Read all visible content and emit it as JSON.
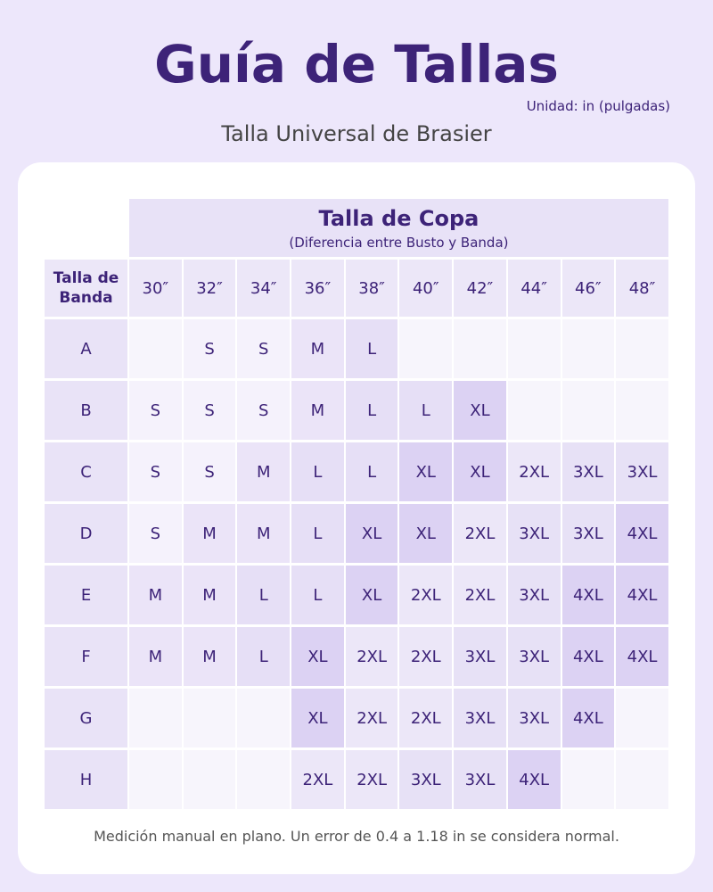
{
  "header": {
    "title": "Guía de Tallas",
    "unit": "Unidad: in (pulgadas)",
    "subtitle": "Talla Universal de Brasier"
  },
  "table": {
    "group_title": "Talla de Copa",
    "group_subtitle": "(Diferencia entre Busto y Banda)",
    "band_header": "Talla de Banda",
    "columns": [
      "30″",
      "32″",
      "34″",
      "36″",
      "38″",
      "40″",
      "42″",
      "44″",
      "46″",
      "48″"
    ],
    "rows": [
      {
        "label": "A",
        "cells": [
          null,
          "S",
          "S",
          "M",
          "L",
          null,
          null,
          null,
          null,
          null
        ]
      },
      {
        "label": "B",
        "cells": [
          "S",
          "S",
          "S",
          "M",
          "L",
          "L",
          "XL",
          null,
          null,
          null
        ]
      },
      {
        "label": "C",
        "cells": [
          "S",
          "S",
          "M",
          "L",
          "L",
          "XL",
          "XL",
          "2XL",
          "3XL",
          "3XL"
        ]
      },
      {
        "label": "D",
        "cells": [
          "S",
          "M",
          "M",
          "L",
          "XL",
          "XL",
          "2XL",
          "3XL",
          "3XL",
          "4XL"
        ]
      },
      {
        "label": "E",
        "cells": [
          "M",
          "M",
          "L",
          "L",
          "XL",
          "2XL",
          "2XL",
          "3XL",
          "4XL",
          "4XL"
        ]
      },
      {
        "label": "F",
        "cells": [
          "M",
          "M",
          "L",
          "XL",
          "2XL",
          "2XL",
          "3XL",
          "3XL",
          "4XL",
          "4XL"
        ]
      },
      {
        "label": "G",
        "cells": [
          null,
          null,
          null,
          "XL",
          "2XL",
          "2XL",
          "3XL",
          "3XL",
          "4XL",
          null
        ]
      },
      {
        "label": "H",
        "cells": [
          null,
          null,
          null,
          "2XL",
          "2XL",
          "3XL",
          "3XL",
          "4XL",
          null,
          null
        ]
      }
    ]
  },
  "footer": {
    "note": "Medición manual en plano. Un error de 0.4 a 1.18 in se considera normal."
  }
}
